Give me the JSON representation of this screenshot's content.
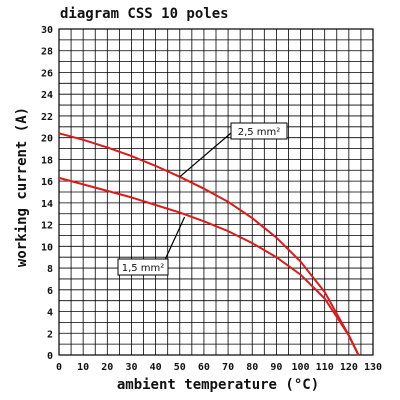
{
  "chart_data": {
    "type": "line",
    "title": "diagram CSS 10 poles",
    "xlabel": "ambient temperature (°C)",
    "ylabel": "working current (A)",
    "xlim": [
      0,
      130
    ],
    "ylim": [
      0,
      30
    ],
    "x_ticks": [
      0,
      10,
      20,
      30,
      40,
      50,
      60,
      70,
      80,
      90,
      100,
      110,
      120,
      130
    ],
    "y_ticks": [
      0,
      2,
      4,
      6,
      8,
      10,
      12,
      14,
      16,
      18,
      20,
      22,
      24,
      26,
      28,
      30
    ],
    "grid": true,
    "series": [
      {
        "name": "2,5 mm²",
        "color": "#dd1a1a",
        "x": [
          0,
          10,
          20,
          30,
          40,
          50,
          60,
          70,
          80,
          90,
          100,
          110,
          115,
          120,
          124
        ],
        "y": [
          20.4,
          19.8,
          19.1,
          18.3,
          17.4,
          16.4,
          15.3,
          14.1,
          12.6,
          10.8,
          8.6,
          5.8,
          3.8,
          1.8,
          0
        ]
      },
      {
        "name": "1,5 mm²",
        "color": "#dd1a1a",
        "x": [
          0,
          10,
          20,
          30,
          40,
          50,
          60,
          70,
          80,
          90,
          100,
          110,
          115,
          120,
          124
        ],
        "y": [
          16.3,
          15.7,
          15.1,
          14.5,
          13.8,
          13.1,
          12.3,
          11.4,
          10.3,
          9.0,
          7.4,
          5.2,
          3.5,
          1.8,
          0
        ]
      }
    ],
    "annotations": [
      {
        "series": 0,
        "text": "2,5 mm²"
      },
      {
        "series": 1,
        "text": "1,5 mm²"
      }
    ]
  }
}
